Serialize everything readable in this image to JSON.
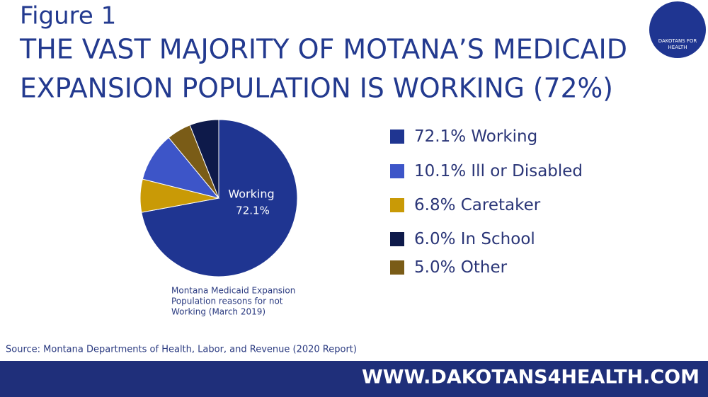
{
  "header": {
    "figure": "Figure 1",
    "title_lines": [
      "THE VAST MAJORITY OF MOTANA’S MEDICAID",
      "EXPANSION POPULATION IS WORKING (72%)"
    ]
  },
  "logo": {
    "lines": [
      "DAKOTANS FOR",
      "HEALTH"
    ]
  },
  "chart_data": {
    "type": "pie",
    "categories": [
      "Working",
      "Caretaker",
      "Ill or Disabled",
      "Other",
      "In School"
    ],
    "values": [
      72.1,
      6.8,
      10.1,
      5.0,
      6.0
    ],
    "value_labels": [
      "72.1%",
      "6.8%",
      "10.1%",
      "5.0%",
      "6.0%"
    ],
    "colors": [
      "#1f3591",
      "#c99a06",
      "#3d55c8",
      "#7a5c17",
      "#0e1a4a"
    ],
    "legend_order": [
      0,
      2,
      1,
      4,
      3
    ],
    "caption_lines": [
      "Montana Medicaid Expansion",
      "Population reasons for not",
      "Working (March 2019)"
    ]
  },
  "source": "Source: Montana Departments of Health, Labor, and Revenue (2020 Report)",
  "footer": "WWW.DAKOTANS4HEALTH.COM"
}
